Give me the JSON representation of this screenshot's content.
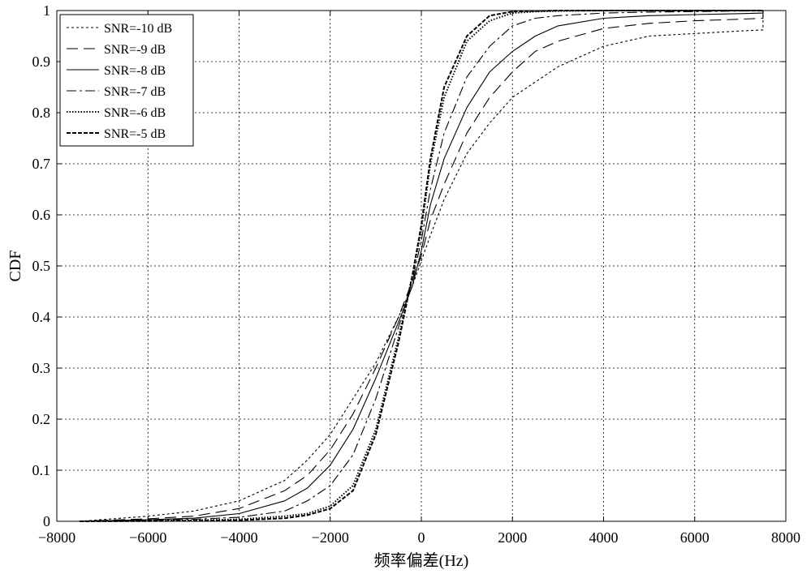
{
  "chart_data": {
    "type": "line",
    "xlabel": "频率偏差(Hz)",
    "ylabel": "CDF",
    "xlim": [
      -8000,
      8000
    ],
    "ylim": [
      0,
      1
    ],
    "xticks": [
      -8000,
      -6000,
      -4000,
      -2000,
      0,
      2000,
      4000,
      6000,
      8000
    ],
    "xtick_labels": [
      "−8000",
      "−6000",
      "−4000",
      "−2000",
      "0",
      "2000",
      "4000",
      "6000",
      "8000"
    ],
    "yticks": [
      0,
      0.1,
      0.2,
      0.3,
      0.4,
      0.5,
      0.6,
      0.7,
      0.8,
      0.9,
      1
    ],
    "ytick_labels": [
      "0",
      "0.1",
      "0.2",
      "0.3",
      "0.4",
      "0.5",
      "0.6",
      "0.7",
      "0.8",
      "0.9",
      "1"
    ],
    "grid": true,
    "legend_position": "top-left",
    "series": [
      {
        "name": "SNR=-10 dB",
        "dash": "3,3",
        "x": [
          -7500,
          -6000,
          -5000,
          -4000,
          -3000,
          -2500,
          -2000,
          -1500,
          -1000,
          -500,
          -200,
          0,
          200,
          500,
          1000,
          1500,
          2000,
          2500,
          3000,
          4000,
          5000,
          6000,
          7000,
          7500,
          7500
        ],
        "y": [
          0.0,
          0.01,
          0.02,
          0.04,
          0.08,
          0.12,
          0.17,
          0.24,
          0.31,
          0.4,
          0.46,
          0.51,
          0.56,
          0.63,
          0.72,
          0.78,
          0.83,
          0.86,
          0.89,
          0.93,
          0.95,
          0.955,
          0.96,
          0.962,
          1.0
        ]
      },
      {
        "name": "SNR=-9 dB",
        "dash": "14,7",
        "x": [
          -7500,
          -6000,
          -5000,
          -4000,
          -3000,
          -2500,
          -2000,
          -1500,
          -1000,
          -500,
          -200,
          0,
          200,
          500,
          1000,
          1500,
          2000,
          2500,
          3000,
          4000,
          5000,
          6000,
          7000,
          7500,
          7500
        ],
        "y": [
          0.0,
          0.005,
          0.01,
          0.025,
          0.06,
          0.09,
          0.14,
          0.21,
          0.3,
          0.4,
          0.47,
          0.52,
          0.59,
          0.66,
          0.76,
          0.83,
          0.88,
          0.92,
          0.94,
          0.965,
          0.975,
          0.98,
          0.983,
          0.985,
          1.0
        ]
      },
      {
        "name": "SNR=-8 dB",
        "dash": "",
        "x": [
          -7500,
          -6000,
          -5000,
          -4000,
          -3000,
          -2500,
          -2000,
          -1500,
          -1000,
          -500,
          -200,
          0,
          200,
          500,
          1000,
          1500,
          2000,
          2500,
          3000,
          4000,
          5000,
          6000,
          7000,
          7500,
          7500
        ],
        "y": [
          0.0,
          0.003,
          0.006,
          0.015,
          0.04,
          0.065,
          0.11,
          0.18,
          0.28,
          0.39,
          0.46,
          0.53,
          0.62,
          0.71,
          0.81,
          0.88,
          0.92,
          0.95,
          0.97,
          0.985,
          0.99,
          0.992,
          0.994,
          0.995,
          1.0
        ]
      },
      {
        "name": "SNR=-7 dB",
        "dash": "12,4,3,4",
        "x": [
          -7500,
          -6000,
          -5000,
          -4000,
          -3000,
          -2500,
          -2000,
          -1500,
          -1000,
          -500,
          -200,
          0,
          200,
          500,
          1000,
          1500,
          2000,
          2500,
          3000,
          4000,
          5000,
          6000,
          7000,
          7500,
          7500
        ],
        "y": [
          0.0,
          0.002,
          0.004,
          0.008,
          0.02,
          0.04,
          0.07,
          0.13,
          0.24,
          0.38,
          0.47,
          0.55,
          0.65,
          0.76,
          0.87,
          0.93,
          0.97,
          0.985,
          0.99,
          0.995,
          0.997,
          0.998,
          0.999,
          0.999,
          1.0
        ]
      },
      {
        "name": "SNR=-6 dB",
        "dash": "1.5,2",
        "x": [
          -7500,
          -6000,
          -5000,
          -4000,
          -3000,
          -2500,
          -2000,
          -1500,
          -1000,
          -500,
          -200,
          0,
          200,
          500,
          1000,
          1500,
          2000,
          2500,
          3000,
          4000,
          5000,
          6000,
          7000,
          7500
        ],
        "y": [
          0.0,
          0.001,
          0.002,
          0.004,
          0.01,
          0.015,
          0.03,
          0.07,
          0.18,
          0.36,
          0.48,
          0.57,
          0.7,
          0.83,
          0.94,
          0.98,
          0.995,
          0.998,
          0.999,
          1.0,
          1.0,
          1.0,
          1.0,
          1.0
        ]
      },
      {
        "name": "SNR=-5 dB",
        "dash": "5,2",
        "x": [
          -7500,
          -6000,
          -5000,
          -4000,
          -3000,
          -2500,
          -2000,
          -1500,
          -1000,
          -500,
          -200,
          0,
          200,
          500,
          1000,
          1500,
          2000,
          2500,
          3000,
          4000,
          5000,
          6000,
          7000,
          7500
        ],
        "y": [
          0.0,
          0.0005,
          0.001,
          0.002,
          0.006,
          0.012,
          0.025,
          0.06,
          0.17,
          0.35,
          0.48,
          0.58,
          0.71,
          0.85,
          0.95,
          0.99,
          0.998,
          0.999,
          1.0,
          1.0,
          1.0,
          1.0,
          1.0,
          1.0
        ]
      }
    ]
  }
}
